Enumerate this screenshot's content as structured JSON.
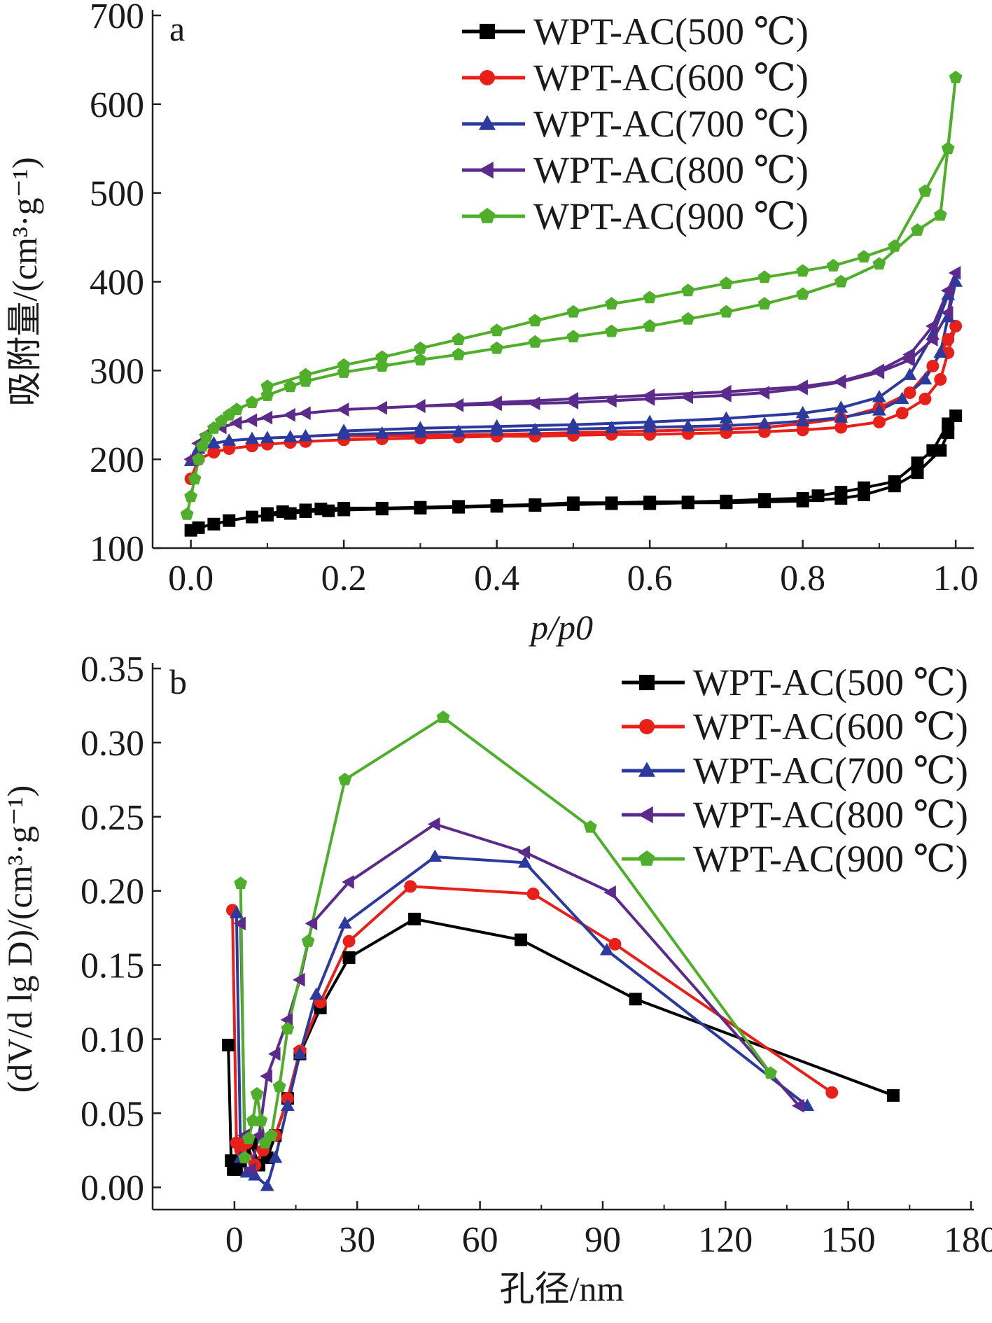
{
  "chart_data": [
    {
      "type": "line",
      "panel_label": "a",
      "xlabel": "p/p0",
      "ylabel": "吸附量/(cm³·g⁻¹)",
      "xlim": [
        -0.05,
        1.02
      ],
      "ylim": [
        100,
        700
      ],
      "xticks": [
        0.0,
        0.2,
        0.4,
        0.6,
        0.8,
        1.0
      ],
      "xtick_labels": [
        "0.0",
        "0.2",
        "0.4",
        "0.6",
        "0.8",
        "1.0"
      ],
      "yticks": [
        100,
        200,
        300,
        400,
        500,
        600,
        700
      ],
      "ytick_labels": [
        "100",
        "200",
        "300",
        "400",
        "500",
        "600",
        "700"
      ],
      "legend_position": "top-right",
      "grid": false,
      "series": [
        {
          "name": "WPT-AC(500 ℃)",
          "color": "#000000",
          "marker": "square",
          "x": [
            0.0,
            0.01,
            0.03,
            0.05,
            0.08,
            0.1,
            0.13,
            0.15,
            0.18,
            0.2,
            0.25,
            0.3,
            0.35,
            0.4,
            0.45,
            0.5,
            0.55,
            0.6,
            0.65,
            0.7,
            0.75,
            0.8,
            0.85,
            0.88,
            0.92,
            0.95,
            0.98,
            0.99,
            1.0,
            0.99,
            0.97,
            0.95,
            0.92,
            0.88,
            0.85,
            0.82,
            0.8,
            0.75,
            0.7,
            0.65,
            0.6,
            0.55,
            0.5,
            0.45,
            0.4,
            0.35,
            0.3,
            0.25,
            0.2,
            0.17,
            0.15,
            0.12,
            0.1
          ],
          "y": [
            120,
            123,
            127,
            131,
            135,
            137,
            139,
            141,
            142,
            143,
            144,
            145,
            146,
            147,
            148,
            149,
            150,
            150,
            151,
            151,
            152,
            153,
            156,
            160,
            170,
            185,
            210,
            230,
            249,
            240,
            210,
            196,
            175,
            168,
            163,
            159,
            156,
            155,
            153,
            152,
            152,
            151,
            151,
            149,
            148,
            147,
            146,
            145,
            145,
            144,
            143,
            141,
            139
          ]
        },
        {
          "name": "WPT-AC(600 ℃)",
          "color": "#e8201a",
          "marker": "circle",
          "x": [
            0.0,
            0.01,
            0.03,
            0.05,
            0.08,
            0.1,
            0.13,
            0.15,
            0.2,
            0.25,
            0.3,
            0.35,
            0.4,
            0.45,
            0.5,
            0.55,
            0.6,
            0.65,
            0.7,
            0.75,
            0.8,
            0.85,
            0.9,
            0.93,
            0.96,
            0.98,
            0.99,
            1.0,
            0.99,
            0.97,
            0.94,
            0.9,
            0.85,
            0.8,
            0.75,
            0.7,
            0.6,
            0.5,
            0.4,
            0.3,
            0.2
          ],
          "y": [
            178,
            200,
            208,
            212,
            215,
            217,
            219,
            220,
            222,
            223,
            224,
            225,
            226,
            226,
            227,
            228,
            228,
            229,
            230,
            231,
            233,
            236,
            242,
            252,
            268,
            290,
            320,
            350,
            335,
            305,
            275,
            258,
            246,
            240,
            236,
            234,
            232,
            230,
            228,
            227,
            226
          ]
        },
        {
          "name": "WPT-AC(700 ℃)",
          "color": "#2b3a9c",
          "marker": "triangle-up",
          "x": [
            0.0,
            0.01,
            0.03,
            0.05,
            0.08,
            0.1,
            0.13,
            0.15,
            0.2,
            0.25,
            0.3,
            0.35,
            0.4,
            0.45,
            0.5,
            0.55,
            0.6,
            0.65,
            0.7,
            0.75,
            0.8,
            0.85,
            0.9,
            0.93,
            0.96,
            0.98,
            0.99,
            1.0,
            0.99,
            0.97,
            0.94,
            0.9,
            0.85,
            0.8,
            0.7,
            0.6,
            0.5,
            0.4,
            0.3,
            0.2
          ],
          "y": [
            198,
            212,
            218,
            221,
            223,
            224,
            225,
            226,
            228,
            229,
            230,
            231,
            232,
            233,
            234,
            235,
            236,
            237,
            238,
            240,
            243,
            247,
            255,
            268,
            290,
            320,
            360,
            400,
            385,
            340,
            295,
            270,
            258,
            252,
            246,
            242,
            239,
            237,
            235,
            232
          ]
        },
        {
          "name": "WPT-AC(800 ℃)",
          "color": "#5b2a8a",
          "marker": "triangle-left",
          "x": [
            0.0,
            0.01,
            0.02,
            0.04,
            0.06,
            0.08,
            0.1,
            0.13,
            0.15,
            0.2,
            0.25,
            0.3,
            0.35,
            0.4,
            0.45,
            0.5,
            0.55,
            0.6,
            0.65,
            0.7,
            0.75,
            0.8,
            0.85,
            0.9,
            0.94,
            0.97,
            0.99,
            1.0,
            0.99,
            0.97,
            0.94,
            0.9,
            0.85,
            0.8,
            0.7,
            0.6,
            0.5,
            0.4,
            0.3,
            0.2
          ],
          "y": [
            200,
            218,
            228,
            236,
            241,
            244,
            247,
            250,
            252,
            256,
            258,
            260,
            261,
            262,
            263,
            264,
            266,
            268,
            270,
            272,
            275,
            280,
            287,
            298,
            312,
            335,
            365,
            410,
            390,
            350,
            318,
            300,
            288,
            282,
            276,
            272,
            268,
            264,
            260,
            256
          ]
        },
        {
          "name": "WPT-AC(900 ℃)",
          "color": "#4fae2a",
          "marker": "pentagon",
          "x": [
            -0.005,
            0.0,
            0.005,
            0.01,
            0.015,
            0.02,
            0.03,
            0.04,
            0.05,
            0.06,
            0.08,
            0.1,
            0.13,
            0.15,
            0.2,
            0.25,
            0.3,
            0.35,
            0.4,
            0.45,
            0.5,
            0.55,
            0.6,
            0.65,
            0.7,
            0.75,
            0.8,
            0.85,
            0.9,
            0.95,
            0.98,
            1.0,
            0.99,
            0.96,
            0.92,
            0.88,
            0.84,
            0.8,
            0.75,
            0.7,
            0.65,
            0.6,
            0.55,
            0.5,
            0.45,
            0.4,
            0.35,
            0.3,
            0.25,
            0.2,
            0.15,
            0.1
          ],
          "y": [
            138,
            158,
            178,
            200,
            215,
            225,
            235,
            243,
            250,
            256,
            264,
            272,
            282,
            288,
            298,
            305,
            312,
            318,
            325,
            332,
            338,
            344,
            350,
            358,
            366,
            375,
            386,
            400,
            420,
            458,
            475,
            630,
            550,
            502,
            440,
            428,
            418,
            412,
            405,
            398,
            390,
            382,
            375,
            366,
            356,
            345,
            335,
            325,
            315,
            306,
            295,
            282
          ]
        }
      ]
    },
    {
      "type": "line",
      "panel_label": "b",
      "xlabel": "孔径/nm",
      "ylabel": "(dV/d lg D)/(cm³·g⁻¹)",
      "xlim": [
        -20,
        180
      ],
      "ylim": [
        -0.015,
        0.35
      ],
      "xticks": [
        0,
        30,
        60,
        90,
        120,
        150,
        180
      ],
      "xtick_labels": [
        "0",
        "30",
        "60",
        "90",
        "120",
        "150",
        "180"
      ],
      "yticks": [
        0.0,
        0.05,
        0.1,
        0.15,
        0.2,
        0.25,
        0.3,
        0.35
      ],
      "ytick_labels": [
        "0.00",
        "0.05",
        "0.10",
        "0.15",
        "0.20",
        "0.25",
        "0.30",
        "0.35"
      ],
      "legend_position": "top-right",
      "grid": false,
      "series": [
        {
          "name": "WPT-AC(500 ℃)",
          "color": "#000000",
          "marker": "square",
          "x": [
            -1.5,
            -0.8,
            -0.3,
            0.5,
            1.5,
            2.5,
            4,
            6,
            8,
            10,
            13,
            16,
            21,
            28,
            44,
            70,
            98,
            161
          ],
          "y": [
            0.096,
            0.018,
            0.012,
            0.012,
            0.018,
            0.025,
            0.03,
            0.015,
            0.02,
            0.035,
            0.06,
            0.09,
            0.121,
            0.155,
            0.181,
            0.167,
            0.127,
            0.062
          ]
        },
        {
          "name": "WPT-AC(600 ℃)",
          "color": "#e8201a",
          "marker": "circle",
          "x": [
            -0.5,
            0.5,
            1.5,
            3,
            5,
            7,
            10,
            13,
            16,
            21,
            28,
            43,
            73,
            93,
            146
          ],
          "y": [
            0.187,
            0.03,
            0.025,
            0.03,
            0.015,
            0.025,
            0.035,
            0.06,
            0.092,
            0.125,
            0.166,
            0.203,
            0.198,
            0.164,
            0.064
          ]
        },
        {
          "name": "WPT-AC(700 ℃)",
          "color": "#2b3a9c",
          "marker": "triangle-up",
          "x": [
            0.5,
            1.5,
            3,
            5,
            8,
            10,
            13,
            16,
            20,
            27,
            49,
            71,
            91,
            140
          ],
          "y": [
            0.185,
            0.02,
            0.01,
            0.008,
            0.001,
            0.02,
            0.055,
            0.09,
            0.13,
            0.178,
            0.223,
            0.219,
            0.16,
            0.055
          ]
        },
        {
          "name": "WPT-AC(800 ℃)",
          "color": "#5b2a8a",
          "marker": "triangle-left",
          "x": [
            1.5,
            2.5,
            4,
            6,
            8,
            10,
            13,
            16,
            19,
            28,
            49,
            71,
            92,
            138
          ],
          "y": [
            0.178,
            0.035,
            0.012,
            0.035,
            0.075,
            0.09,
            0.113,
            0.14,
            0.178,
            0.206,
            0.245,
            0.226,
            0.199,
            0.055
          ]
        },
        {
          "name": "WPT-AC(900 ℃)",
          "color": "#4fae2a",
          "marker": "pentagon",
          "x": [
            1.5,
            2.5,
            3.5,
            4.5,
            5.5,
            6.5,
            7.5,
            9,
            11,
            13,
            18,
            27,
            51,
            87,
            131
          ],
          "y": [
            0.205,
            0.02,
            0.033,
            0.045,
            0.063,
            0.045,
            0.03,
            0.035,
            0.068,
            0.107,
            0.166,
            0.275,
            0.317,
            0.243,
            0.077
          ]
        }
      ]
    }
  ]
}
